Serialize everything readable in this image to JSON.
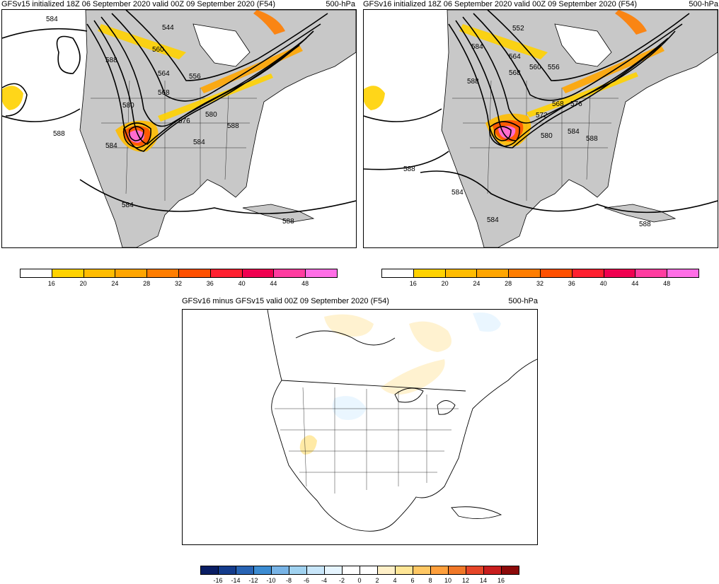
{
  "panels": [
    {
      "title": "GFSv15 initialized 18Z 06 September 2020 valid 00Z 09 September 2020 (F54)",
      "level": "500-hPa",
      "contour_labels": [
        "584",
        "588",
        "544",
        "560",
        "564",
        "556",
        "568",
        "580",
        "576",
        "584",
        "580",
        "588",
        "584",
        "588",
        "584",
        "588"
      ]
    },
    {
      "title": "GFSv16 initialized 18Z 06 September 2020 valid 00Z 09 September 2020 (F54)",
      "level": "500-hPa",
      "contour_labels": [
        "552",
        "584",
        "564",
        "588",
        "568",
        "560",
        "556",
        "568",
        "576",
        "572",
        "580",
        "584",
        "588",
        "588",
        "584",
        "584",
        "588"
      ]
    },
    {
      "title": "GFSv16 minus GFSv15 valid 00Z 09 September 2020 (F54)",
      "level": "500-hPa"
    }
  ],
  "colorbar_top": {
    "ticks": [
      "16",
      "20",
      "24",
      "28",
      "32",
      "36",
      "40",
      "44",
      "48"
    ],
    "colors": [
      "#ffffff",
      "#ffd200",
      "#ffbc00",
      "#ffa500",
      "#ff7d00",
      "#ff5000",
      "#ff2030",
      "#f00050",
      "#ff3ca0",
      "#ff6ee6"
    ]
  },
  "colorbar_bottom": {
    "ticks": [
      "-16",
      "-14",
      "-12",
      "-10",
      "-8",
      "-6",
      "-4",
      "-2",
      "0",
      "2",
      "4",
      "6",
      "8",
      "10",
      "12",
      "14",
      "16"
    ],
    "colors": [
      "#0a1e64",
      "#143c8c",
      "#2864b4",
      "#3c8cd2",
      "#78b4e6",
      "#a0d2f0",
      "#c8e6fa",
      "#e6f5ff",
      "#ffffff",
      "#ffffff",
      "#fff0c8",
      "#ffe696",
      "#ffc864",
      "#ffa03c",
      "#f07828",
      "#e64628",
      "#c81e1e",
      "#8c0a0a"
    ]
  }
}
